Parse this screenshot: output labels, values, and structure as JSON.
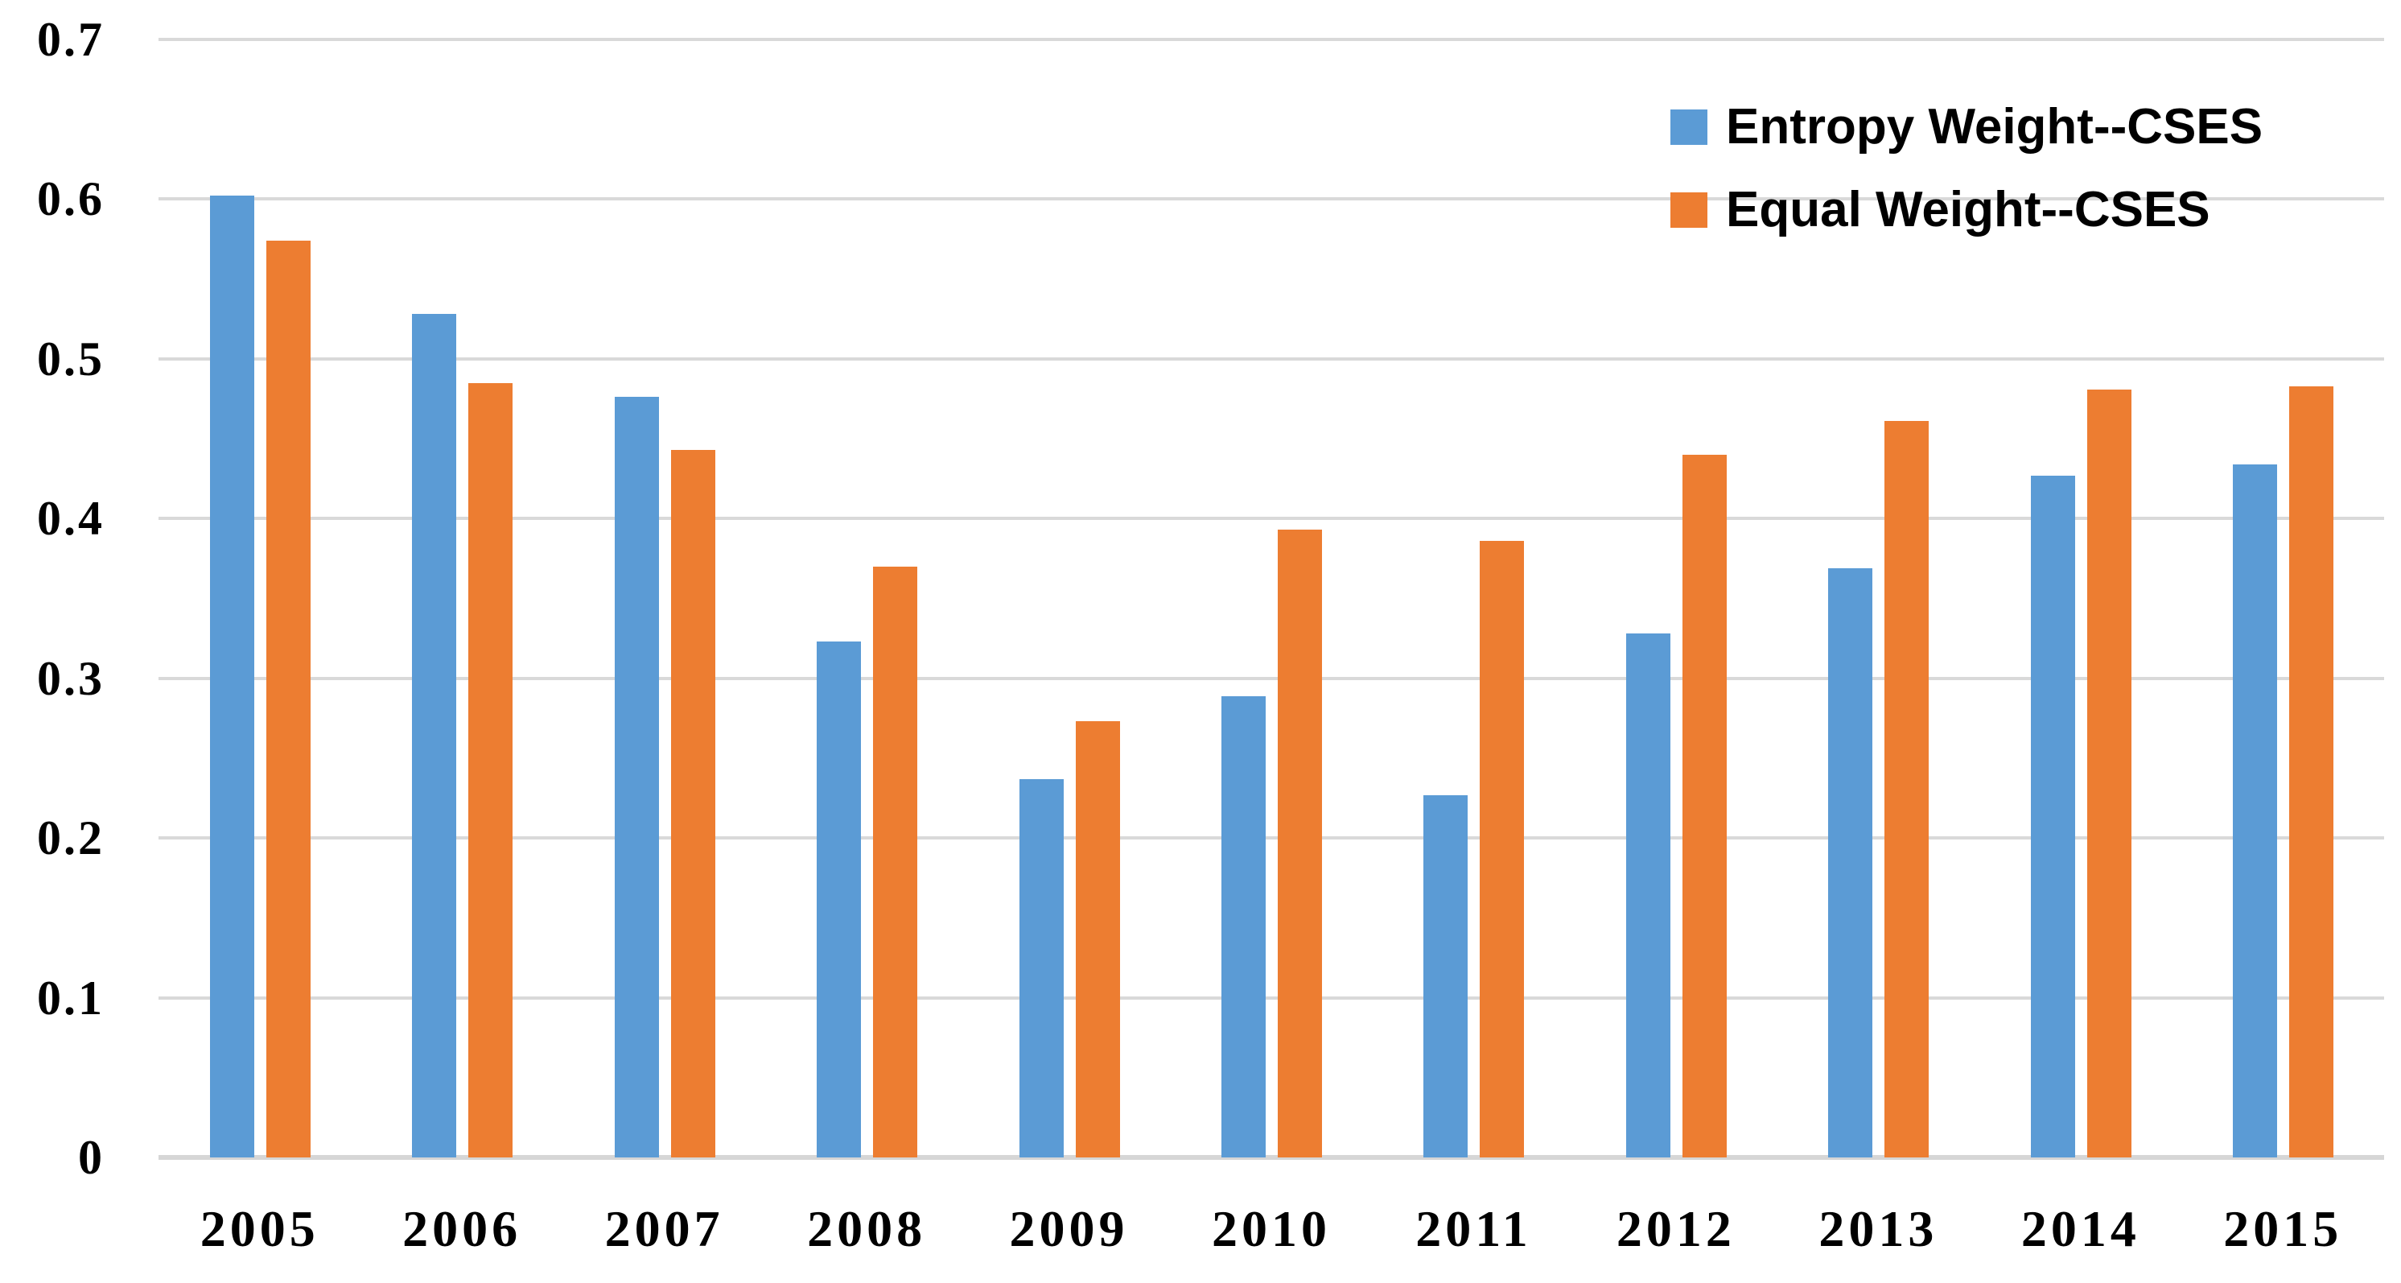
{
  "chart_data": {
    "type": "bar",
    "title": "",
    "xlabel": "",
    "ylabel": "",
    "categories": [
      "2005",
      "2006",
      "2007",
      "2008",
      "2009",
      "2010",
      "2011",
      "2012",
      "2013",
      "2014",
      "2015"
    ],
    "series": [
      {
        "name": "Entropy Weight--CSES",
        "color": "#5B9BD5",
        "values": [
          0.602,
          0.528,
          0.476,
          0.323,
          0.237,
          0.289,
          0.227,
          0.328,
          0.369,
          0.427,
          0.434
        ]
      },
      {
        "name": "Equal Weight--CSES",
        "color": "#ED7D31",
        "values": [
          0.574,
          0.485,
          0.443,
          0.37,
          0.273,
          0.393,
          0.386,
          0.44,
          0.461,
          0.481,
          0.483
        ]
      }
    ],
    "ylim": [
      0,
      0.7
    ],
    "yticks": [
      0,
      0.1,
      0.2,
      0.3,
      0.4,
      0.5,
      0.6,
      0.7
    ],
    "ytick_labels": [
      "0",
      "0.1",
      "0.2",
      "0.3",
      "0.4",
      "0.5",
      "0.6",
      "0.7"
    ],
    "grid": "horizontal",
    "gridline_color": "#D9D9D9",
    "background_color": "#FFFFFF",
    "text_color": "#000000",
    "legend_position": "top-right"
  }
}
